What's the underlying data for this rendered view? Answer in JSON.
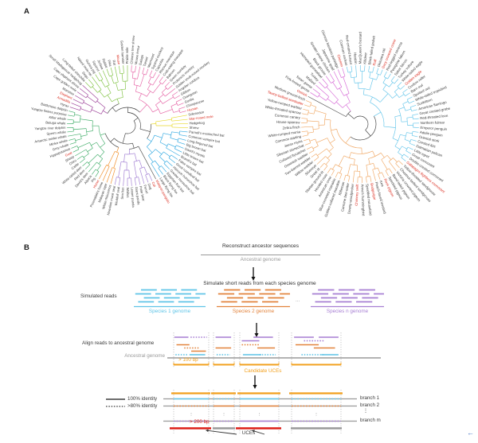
{
  "panel_a_label": "A",
  "panel_b_label": "B",
  "colors": {
    "sp1": "#5FC4E7",
    "sp2": "#E2833C",
    "sp3": "#A77FD3",
    "amber": "#F2A01E",
    "red": "#DD201A",
    "grey_line": "#9A9A9A",
    "dark": "#3F3F3F",
    "red_label": "#DB2B1E",
    "black_label": "#3B3B3B",
    "guide": "#B3B3B3"
  },
  "trees": {
    "mammals": {
      "clades": [
        {
          "color": "#9C4098",
          "species": [
            [
              "Hyrax",
              0
            ],
            [
              "Armadillo",
              1
            ],
            [
              "Elephant",
              1
            ],
            [
              "Manatee",
              0
            ],
            [
              "Cape golden mole",
              0
            ],
            [
              "Cape elephant shrew",
              0
            ],
            [
              "Small Madagascar hedgehog",
              0
            ]
          ]
        },
        {
          "color": "#7FC241",
          "species": [
            [
              "Long-tailed chinchilla",
              0
            ],
            [
              "Degu",
              0
            ],
            [
              "Naked mole-rat",
              0
            ],
            [
              "Guinea pig",
              0
            ],
            [
              "Squirrel",
              0
            ],
            [
              "Jerboa",
              0
            ],
            [
              "Rabbit",
              0
            ],
            [
              "Pika",
              0
            ],
            [
              "Rat",
              0
            ],
            [
              "Mouse",
              1
            ],
            [
              "Golden hamster",
              0
            ],
            [
              "Prairie vole",
              0
            ]
          ]
        },
        {
          "color": "#E561A4",
          "species": [
            [
              "Chinese tree shrew",
              0
            ],
            [
              "Mouse lemur",
              0
            ],
            [
              "Galago",
              0
            ],
            [
              "Tarsier",
              0
            ],
            [
              "Marmoset",
              0
            ],
            [
              "Squirrel monkey",
              0
            ],
            [
              "Capuchin",
              0
            ],
            [
              "Rhesus macaque",
              0
            ],
            [
              "Crab-eating macaque",
              0
            ],
            [
              "Baboon",
              0
            ],
            [
              "Green monkey",
              0
            ],
            [
              "Proboscis monkey",
              0
            ],
            [
              "Golden snub-nosed monkey",
              0
            ],
            [
              "Angolan colobus",
              0
            ],
            [
              "Gibbon",
              0
            ],
            [
              "Orangutan",
              0
            ],
            [
              "Gorilla",
              0
            ],
            [
              "Chimpanzee",
              0
            ],
            [
              "Human",
              1
            ]
          ]
        },
        {
          "color": "#E8D92E",
          "species": [
            [
              "Solenodon",
              0
            ],
            [
              "Star-nosed mole",
              1
            ],
            [
              "Hedgehog",
              0
            ],
            [
              "Shrew",
              0
            ]
          ]
        },
        {
          "color": "#2FA8E1",
          "species": [
            [
              "Parnell's mustached bat",
              0
            ],
            [
              "Common vampire bat",
              0
            ],
            [
              "Long-fingered bat",
              0
            ],
            [
              "Big brown bat",
              0
            ],
            [
              "David's myotis",
              0
            ],
            [
              "Little brown bat",
              0
            ],
            [
              "Brandt's bat",
              0
            ],
            [
              "False vampire bat",
              0
            ],
            [
              "Great roundleaf bat",
              0
            ],
            [
              "Halcyon horseshoe bat",
              0
            ],
            [
              "Greater horseshoe bat",
              0
            ],
            [
              "Egyptian fruit bat",
              0
            ],
            [
              "Black flying fox",
              0
            ],
            [
              "Large flying fox",
              0
            ]
          ]
        },
        {
          "color": "#4D4D4D",
          "species": [
            [
              "Malayan pangolin",
              1
            ]
          ]
        },
        {
          "color": "#9F7BD2",
          "species": [
            [
              "Cat",
              1
            ],
            [
              "Dog",
              0
            ],
            [
              "Ferret",
              0
            ],
            [
              "Polar bear",
              0
            ],
            [
              "Giant panda",
              0
            ],
            [
              "Lesser panda",
              0
            ],
            [
              "Walrus",
              0
            ],
            [
              "Sea lion",
              0
            ],
            [
              "Weddell seal",
              0
            ],
            [
              "Hawaiian monk seal",
              0
            ]
          ]
        },
        {
          "color": "#F08A21",
          "species": [
            [
              "White rhinoceros",
              0
            ],
            [
              "Malayan tapir",
              0
            ],
            [
              "Przewalski's horse",
              0
            ],
            [
              "Horse",
              1
            ]
          ]
        },
        {
          "color": "#43AE6B",
          "species": [
            [
              "Pig",
              0
            ],
            [
              "Alpaca",
              0
            ],
            [
              "David's deer",
              0
            ],
            [
              "Red deer",
              0
            ],
            [
              "White-tailed deer",
              0
            ],
            [
              "Cattle",
              0
            ],
            [
              "Chiru",
              0
            ],
            [
              "Sheep",
              0
            ],
            [
              "Goat",
              1
            ],
            [
              "Hippopotamus",
              0
            ],
            [
              "Grey whale",
              0
            ],
            [
              "Minke whale",
              0
            ],
            [
              "Antarctic minke whale",
              0
            ],
            [
              "Sperm whale",
              0
            ],
            [
              "Yangtze river dolphin",
              0
            ],
            [
              "Beluga whale",
              0
            ],
            [
              "Killer whale",
              0
            ],
            [
              "Yangtze finless porpoise",
              0
            ],
            [
              "Bottlenose dolphin",
              0
            ]
          ]
        }
      ]
    },
    "birds": {
      "clades": [
        {
          "color": "#4D4D4D",
          "species": [
            [
              "Ostrich",
              1
            ]
          ]
        },
        {
          "color": "#D668D6",
          "species": [
            [
              "Pink-footed goose",
              0
            ],
            [
              "Swan goose",
              0
            ],
            [
              "Mallard",
              0
            ],
            [
              "Turkey",
              0
            ],
            [
              "Helmeted guineafowl",
              0
            ],
            [
              "Black grouse",
              0
            ],
            [
              "Greater prairie chicken",
              0
            ],
            [
              "Japanese quail",
              0
            ],
            [
              "Chinese bamboo partridge",
              0
            ],
            [
              "Chicken",
              1
            ]
          ]
        },
        {
          "color": "#63C5EA",
          "species": [
            [
              "Common cuckoo",
              0
            ],
            [
              "Red-crested turaco",
              0
            ],
            [
              "Hoatzin",
              0
            ],
            [
              "MacQueen's bustard",
              0
            ],
            [
              "Killdeer",
              0
            ],
            [
              "Black-tailed godwit",
              0
            ],
            [
              "Ruff",
              1
            ],
            [
              "Okinawa rail",
              0
            ],
            [
              "Grey crowned crane",
              1
            ],
            [
              "Red-legged seriema",
              0
            ],
            [
              "Peregrine falcon",
              0
            ],
            [
              "Saker falcon",
              0
            ],
            [
              "Turkey vulture",
              0
            ],
            [
              "White-tailed eagle",
              0
            ],
            [
              "Golden eagle",
              1
            ],
            [
              "Cuckoo roller",
              0
            ],
            [
              "Barn owl",
              0
            ],
            [
              "Spotted owl",
              0
            ],
            [
              "White-tailed tropicbird",
              0
            ],
            [
              "Sunbittern",
              0
            ],
            [
              "American flamingo",
              0
            ],
            [
              "Great crested grebe",
              0
            ],
            [
              "Red-throated loon",
              0
            ],
            [
              "Northern fulmar",
              0
            ],
            [
              "Emperor penguin",
              0
            ],
            [
              "Adelie penguin",
              0
            ],
            [
              "Oriental stork",
              0
            ],
            [
              "Crested ibis",
              0
            ],
            [
              "Dalmatian pelican",
              0
            ],
            [
              "Little egret",
              0
            ],
            [
              "Great cormorant",
              0
            ],
            [
              "Double-crested cormorant",
              0
            ],
            [
              "Galapagos flightless cormorant",
              1
            ]
          ]
        },
        {
          "color": "#F0A865",
          "species": [
            [
              "Yellow-throated sandgrouse",
              0
            ],
            [
              "Chestnut-bellied sandgrouse",
              0
            ],
            [
              "Victoria crowned pigeon",
              0
            ],
            [
              "Band-tailed pigeon",
              0
            ],
            [
              "Speckled pigeon",
              0
            ],
            [
              "Rock pigeon",
              1
            ],
            [
              "Kea",
              0
            ],
            [
              "Peach-faced lovebird",
              0
            ],
            [
              "Budgerigar",
              1
            ],
            [
              "Speckled mousebird",
              0
            ],
            [
              "Anna's hummingbird",
              0
            ],
            [
              "Chimney swift",
              1
            ],
            [
              "Downy woodpecker",
              0
            ],
            [
              "Carmine bee-eater",
              0
            ],
            [
              "Rifleman",
              0
            ],
            [
              "Golden-collared manakin",
              0
            ],
            [
              "Blue-crowned manakin",
              0
            ],
            [
              "American crow",
              0
            ],
            [
              "Hooded crow",
              0
            ],
            [
              "Tibetan ground-tit",
              0
            ],
            [
              "Great tit",
              0
            ],
            [
              "Silvereye",
              0
            ],
            [
              "Willow warbler",
              0
            ],
            [
              "Two-barred warbler",
              0
            ],
            [
              "Greenish warbler",
              0
            ],
            [
              "Collared flycatcher",
              0
            ],
            [
              "Siberian stonechat",
              0
            ],
            [
              "Javan myna",
              0
            ],
            [
              "Common starling",
              0
            ],
            [
              "White-rumped munia",
              0
            ],
            [
              "Zebra finch",
              0
            ],
            [
              "House sparrow",
              0
            ],
            [
              "Common canary",
              0
            ],
            [
              "White-throated sparrow",
              0
            ],
            [
              "Yellow-rumped warbler",
              0
            ],
            [
              "Tawny-bellied seedeater",
              1
            ],
            [
              "Medium ground-finch",
              0
            ]
          ]
        }
      ]
    }
  },
  "panel_b": {
    "reconstruct_title": "Reconstruct ancestor sequences",
    "ancestral_genome": "Ancestral genome",
    "simulate_title": "Simulate short reads from each species genome",
    "simulated_reads": "Simulated reads",
    "ellipsis": "...",
    "species_labels": [
      "Species 1 genome",
      "Species 2 genome",
      "Species n genome"
    ],
    "align_title": "Align reads to ancestral genome",
    "ancestral_genome_2": "Ancestral genome",
    "min_len_100": "> 100 bp",
    "candidate_uces": "Candidate UCEs",
    "legend_solid": "100% identity",
    "legend_dotted": ">80% identity",
    "branch_labels": [
      "branch 1",
      "branch 2",
      "branch m"
    ],
    "vdots": "⋮",
    "min_len_200": "> 200 bp",
    "uces": "UCEs",
    "return_arrow": "←",
    "read_columns": [
      [
        [
          "p1",
          0.02,
          0.42,
          "solid"
        ],
        [
          "p1",
          0.48,
          0.95,
          "dotted"
        ],
        [
          "o2",
          0.3,
          0.75,
          "dotted"
        ],
        [
          "o1",
          0.08,
          0.45,
          "solid"
        ],
        [
          "o3",
          0.5,
          0.92,
          "solid"
        ],
        [
          "b1",
          0.05,
          0.4,
          "dotted"
        ],
        [
          "b1",
          0.45,
          0.9,
          "solid"
        ]
      ],
      [
        [
          "p1",
          0.1,
          0.85,
          "solid"
        ],
        [
          "o2",
          0.1,
          0.85,
          "solid"
        ],
        [
          "b1",
          0.15,
          0.8,
          "dotted"
        ]
      ],
      [
        [
          "p2",
          0.05,
          0.5,
          "solid"
        ],
        [
          "p1",
          0.35,
          0.85,
          "solid"
        ],
        [
          "o1",
          0.05,
          0.5,
          "dotted"
        ],
        [
          "o2",
          0.45,
          0.9,
          "solid"
        ],
        [
          "b1",
          0.08,
          0.55,
          "solid"
        ],
        [
          "b1",
          0.5,
          0.92,
          "dotted"
        ]
      ],
      [
        [
          "p1",
          0.05,
          0.45,
          "solid"
        ],
        [
          "p2",
          0.25,
          0.65,
          "dotted"
        ],
        [
          "p1",
          0.55,
          0.95,
          "solid"
        ],
        [
          "o1",
          0.08,
          0.55,
          "solid"
        ],
        [
          "o2",
          0.45,
          0.88,
          "solid"
        ],
        [
          "b1",
          0.2,
          0.65,
          "dotted"
        ],
        [
          "b1",
          0.6,
          0.95,
          "solid"
        ]
      ]
    ],
    "alignment_matrix": {
      "branch1": [
        "solid",
        "dotted",
        "solid",
        "dotted"
      ],
      "branch2": [
        "dotted",
        "solid",
        "solid",
        "dotted"
      ],
      "branch_m": [
        "dotted",
        "dotted",
        "solid",
        "dotted"
      ],
      "uce_result": [
        "uce",
        "none",
        "uce",
        "none"
      ]
    }
  }
}
